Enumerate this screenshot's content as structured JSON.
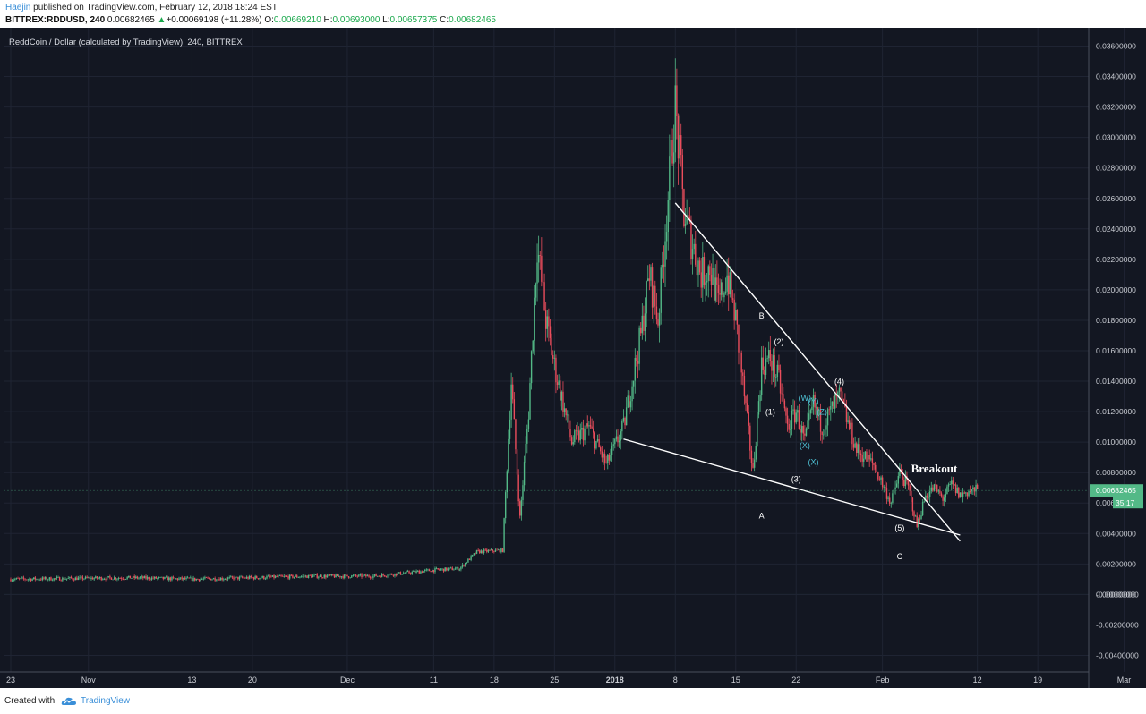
{
  "header": {
    "user": "Haejin",
    "published": " published on TradingView.com, February 12, 2018 18:24 EST",
    "symbol": "BITTREX:RDDUSD, 240",
    "last": "0.00682465",
    "change_arrow": "▲",
    "change": "+0.00069198 (+11.28%)",
    "o_label": "O:",
    "o_val": "0.00669210",
    "h_label": "H:",
    "h_val": "0.00693000",
    "l_label": "L:",
    "l_val": "0.00657375",
    "c_label": "C:",
    "c_val": "0.00682465"
  },
  "footer": {
    "created_with": "Created with",
    "brand": "TradingView",
    "logo_icon": "tradingview-cloud-icon"
  },
  "colors": {
    "background": "#131722",
    "up": "#53b987",
    "down": "#eb4d5c",
    "annotation": "#ffffff",
    "wxy": "#4fc3d6",
    "price_badge": "#53b987"
  },
  "chart_data": {
    "type": "candlestick",
    "title": "ReddCoin / Dollar (calculated by TradingView), 240, BITTREX",
    "ylim": [
      -0.0045,
      0.0365
    ],
    "y_ticks": [
      "0.03600000",
      "0.03400000",
      "0.03200000",
      "0.03000000",
      "0.02800000",
      "0.02600000",
      "0.02400000",
      "0.02200000",
      "0.02000000",
      "0.01800000",
      "0.01600000",
      "0.01400000",
      "0.01200000",
      "0.01000000",
      "0.00800000",
      "0.006",
      "0.00400000",
      "0.00200000",
      "0.00000000",
      "-0.00000000",
      "-0.00200000",
      "-0.00400000"
    ],
    "x_ticks": [
      "23",
      "Nov",
      "13",
      "20",
      "Dec",
      "11",
      "18",
      "25",
      "2018",
      "8",
      "15",
      "22",
      "Feb",
      "12",
      "19",
      "Mar"
    ],
    "last_price_label": "0.00682465",
    "countdown_label": "35:17",
    "close_path": [
      [
        "2017-10-23",
        0.001
      ],
      [
        "2017-11-06",
        0.0011
      ],
      [
        "2017-11-13",
        0.001
      ],
      [
        "2017-11-20",
        0.0011
      ],
      [
        "2017-11-27",
        0.0012
      ],
      [
        "2017-12-04",
        0.0012
      ],
      [
        "2017-12-11",
        0.0016
      ],
      [
        "2017-12-14",
        0.0017
      ],
      [
        "2017-12-16",
        0.0028
      ],
      [
        "2017-12-19",
        0.0029
      ],
      [
        "2017-12-20",
        0.014
      ],
      [
        "2017-12-21",
        0.005
      ],
      [
        "2017-12-22",
        0.012
      ],
      [
        "2017-12-23",
        0.023
      ],
      [
        "2017-12-24",
        0.018
      ],
      [
        "2017-12-25",
        0.015
      ],
      [
        "2017-12-27",
        0.01
      ],
      [
        "2017-12-29",
        0.011
      ],
      [
        "2017-12-31",
        0.0085
      ],
      [
        "2018-01-02",
        0.011
      ],
      [
        "2018-01-04",
        0.017
      ],
      [
        "2018-01-05",
        0.021
      ],
      [
        "2018-01-06",
        0.018
      ],
      [
        "2018-01-07",
        0.025
      ],
      [
        "2018-01-08",
        0.032
      ],
      [
        "2018-01-09",
        0.025
      ],
      [
        "2018-01-10",
        0.023
      ],
      [
        "2018-01-11",
        0.021
      ],
      [
        "2018-01-12",
        0.0215
      ],
      [
        "2018-01-13",
        0.019
      ],
      [
        "2018-01-14",
        0.021
      ],
      [
        "2018-01-15",
        0.018
      ],
      [
        "2018-01-16",
        0.013
      ],
      [
        "2018-01-17",
        0.008
      ],
      [
        "2018-01-18",
        0.015
      ],
      [
        "2018-01-19",
        0.0155
      ],
      [
        "2018-01-20",
        0.014
      ],
      [
        "2018-01-21",
        0.011
      ],
      [
        "2018-01-22",
        0.012
      ],
      [
        "2018-01-23",
        0.01
      ],
      [
        "2018-01-24",
        0.0125
      ],
      [
        "2018-01-25",
        0.011
      ],
      [
        "2018-01-26",
        0.012
      ],
      [
        "2018-01-27",
        0.013
      ],
      [
        "2018-01-29",
        0.0095
      ],
      [
        "2018-01-31",
        0.0085
      ],
      [
        "2018-02-02",
        0.006
      ],
      [
        "2018-02-03",
        0.008
      ],
      [
        "2018-02-04",
        0.007
      ],
      [
        "2018-02-05",
        0.0045
      ],
      [
        "2018-02-06",
        0.0065
      ],
      [
        "2018-02-07",
        0.007
      ],
      [
        "2018-02-08",
        0.0063
      ],
      [
        "2018-02-09",
        0.0072
      ],
      [
        "2018-02-10",
        0.0065
      ],
      [
        "2018-02-11",
        0.0068
      ],
      [
        "2018-02-12",
        0.00682465
      ]
    ],
    "trendlines": [
      {
        "name": "upper-trendline",
        "from": [
          "2018-01-08",
          0.0257
        ],
        "to": [
          "2018-02-10",
          0.0035
        ]
      },
      {
        "name": "lower-trendline",
        "from": [
          "2018-01-02",
          0.0102
        ],
        "to": [
          "2018-02-10",
          0.0039
        ]
      }
    ],
    "annotations": [
      {
        "text": "B",
        "at": [
          "2018-01-18",
          0.0181
        ],
        "color": "annotation",
        "size": "small"
      },
      {
        "text": "A",
        "at": [
          "2018-01-18",
          0.005
        ],
        "color": "annotation",
        "size": "small"
      },
      {
        "text": "(2)",
        "at": [
          "2018-01-20",
          0.0164
        ],
        "color": "annotation",
        "size": "small"
      },
      {
        "text": "(1)",
        "at": [
          "2018-01-19",
          0.0118
        ],
        "color": "annotation",
        "size": "small"
      },
      {
        "text": "(3)",
        "at": [
          "2018-01-22",
          0.0074
        ],
        "color": "annotation",
        "size": "small"
      },
      {
        "text": "(4)",
        "at": [
          "2018-01-27",
          0.0138
        ],
        "color": "annotation",
        "size": "small"
      },
      {
        "text": "(5)",
        "at": [
          "2018-02-03",
          0.0042
        ],
        "color": "annotation",
        "size": "small"
      },
      {
        "text": "C",
        "at": [
          "2018-02-03",
          0.0023
        ],
        "color": "annotation",
        "size": "small"
      },
      {
        "text": "(W)",
        "at": [
          "2018-01-23",
          0.0127
        ],
        "color": "wxy",
        "size": "small"
      },
      {
        "text": "(Y)",
        "at": [
          "2018-01-24",
          0.0125
        ],
        "color": "wxy",
        "size": "small"
      },
      {
        "text": "(Z)",
        "at": [
          "2018-01-25",
          0.0118
        ],
        "color": "wxy",
        "size": "small"
      },
      {
        "text": "(X)",
        "at": [
          "2018-01-23",
          0.0096
        ],
        "color": "wxy",
        "size": "small"
      },
      {
        "text": "(X)",
        "at": [
          "2018-01-24",
          0.0085
        ],
        "color": "wxy",
        "size": "small"
      },
      {
        "text": "Breakout",
        "at": [
          "2018-02-07",
          0.008
        ],
        "color": "annotation",
        "size": "large"
      }
    ]
  }
}
